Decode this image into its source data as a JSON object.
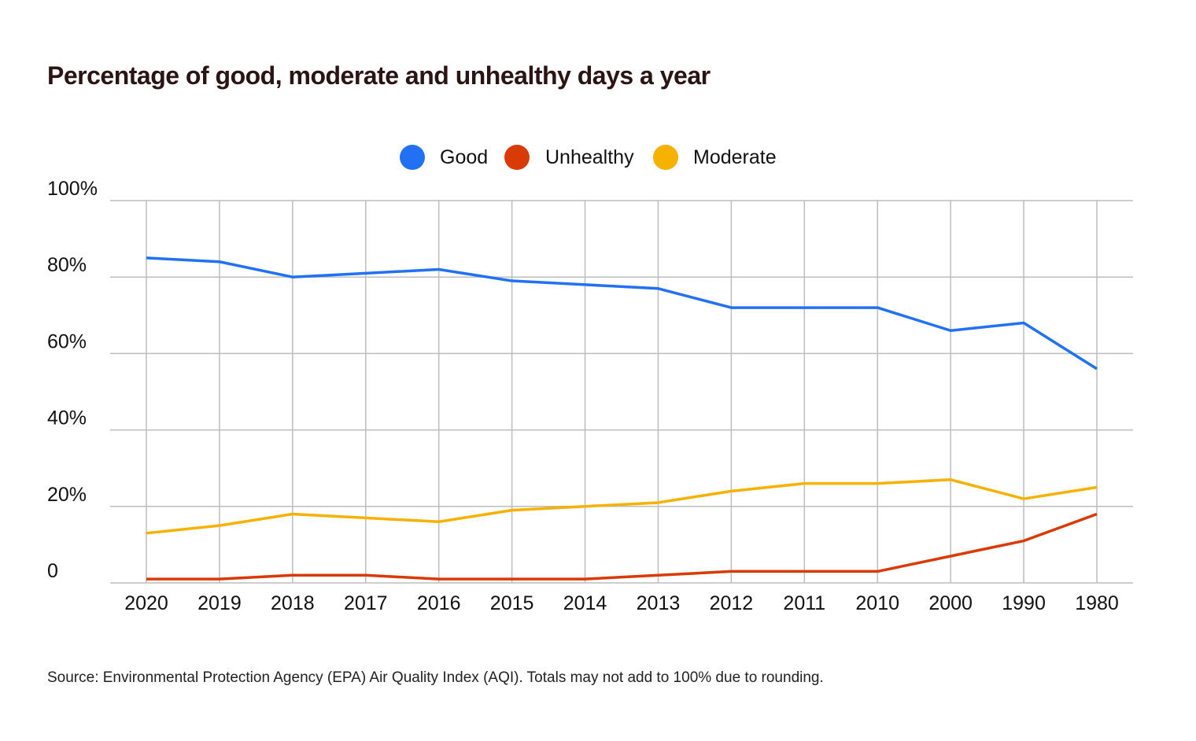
{
  "chart_data": {
    "type": "line",
    "title": "Percentage of good, moderate and unhealthy days a year",
    "source": "Source: Environmental Protection Agency (EPA) Air Quality Index (AQI). Totals may not add to 100% due to rounding.",
    "categories": [
      "2020",
      "2019",
      "2018",
      "2017",
      "2016",
      "2015",
      "2014",
      "2013",
      "2012",
      "2011",
      "2010",
      "2000",
      "1990",
      "1980"
    ],
    "ylim": [
      0,
      100
    ],
    "yticks": [
      0,
      20,
      40,
      60,
      80,
      100
    ],
    "ytick_labels": [
      "0",
      "20%",
      "40%",
      "60%",
      "80%",
      "100%"
    ],
    "grid": true,
    "legend_position": "top-center",
    "series": [
      {
        "name": "Good",
        "color": "#2271f5",
        "values": [
          85,
          84,
          80,
          81,
          82,
          79,
          78,
          77,
          72,
          72,
          72,
          66,
          68,
          56
        ]
      },
      {
        "name": "Unhealthy",
        "color": "#d93a06",
        "values": [
          1,
          1,
          2,
          2,
          1,
          1,
          1,
          2,
          3,
          3,
          3,
          7,
          11,
          18
        ]
      },
      {
        "name": "Moderate",
        "color": "#f7b100",
        "values": [
          13,
          15,
          18,
          17,
          16,
          19,
          20,
          21,
          24,
          26,
          26,
          27,
          22,
          25
        ]
      }
    ]
  }
}
